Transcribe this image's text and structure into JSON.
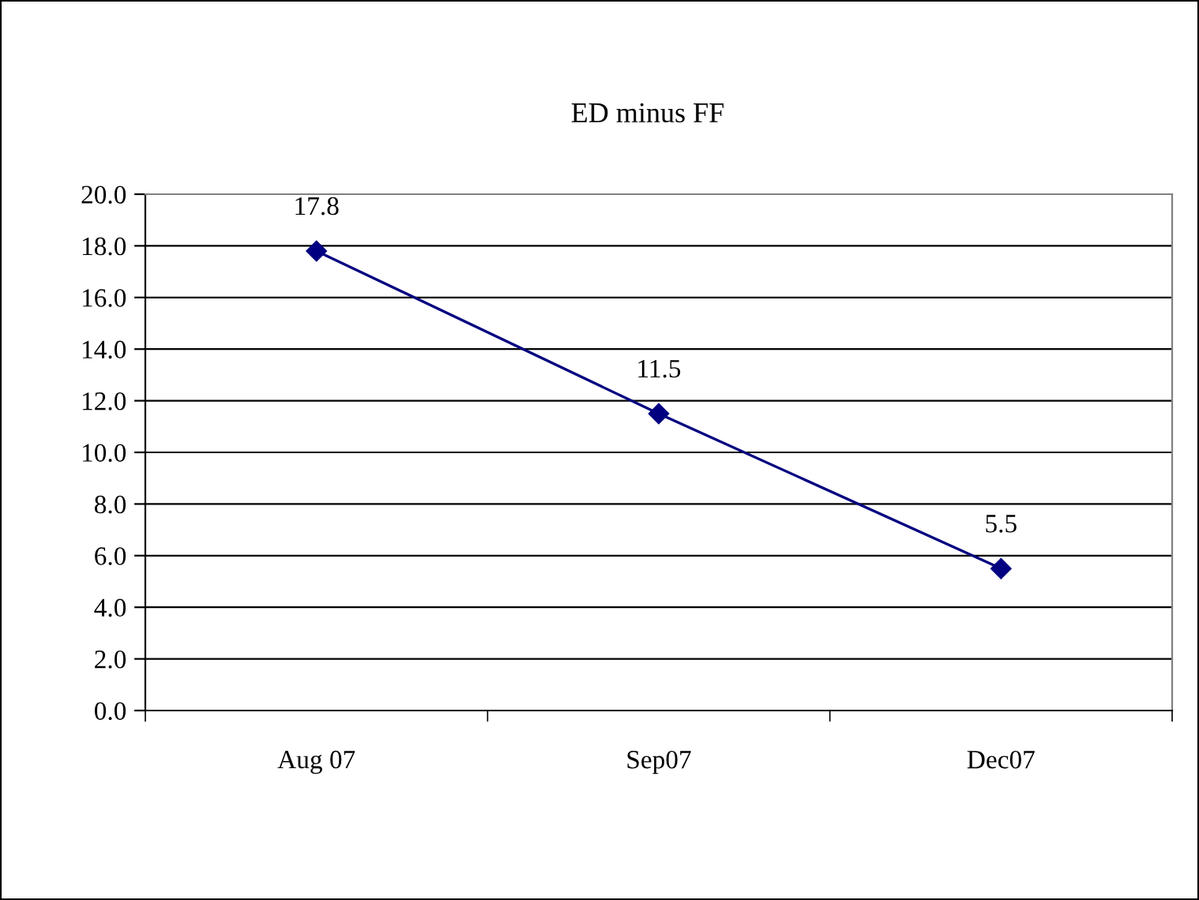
{
  "chart_data": {
    "type": "line",
    "title": "ED minus FF",
    "categories": [
      "Aug 07",
      "Sep07",
      "Dec07"
    ],
    "series": [
      {
        "color": "#000080",
        "values": [
          17.8,
          11.5,
          5.5
        ]
      }
    ],
    "ylim": [
      0,
      20
    ],
    "yticks": [
      {
        "value": 0,
        "label": "0.0"
      },
      {
        "value": 2,
        "label": "2.0"
      },
      {
        "value": 4,
        "label": "4.0"
      },
      {
        "value": 6,
        "label": "6.0"
      },
      {
        "value": 8,
        "label": "8.0"
      },
      {
        "value": 10,
        "label": "10.0"
      },
      {
        "value": 12,
        "label": "12.0"
      },
      {
        "value": 14,
        "label": "14.0"
      },
      {
        "value": 16,
        "label": "16.0"
      },
      {
        "value": 18,
        "label": "18.0"
      },
      {
        "value": 20,
        "label": "20.0"
      }
    ],
    "grid": "y",
    "marker": "diamond",
    "line_style": "solid",
    "data_labels": true,
    "legend": false
  }
}
